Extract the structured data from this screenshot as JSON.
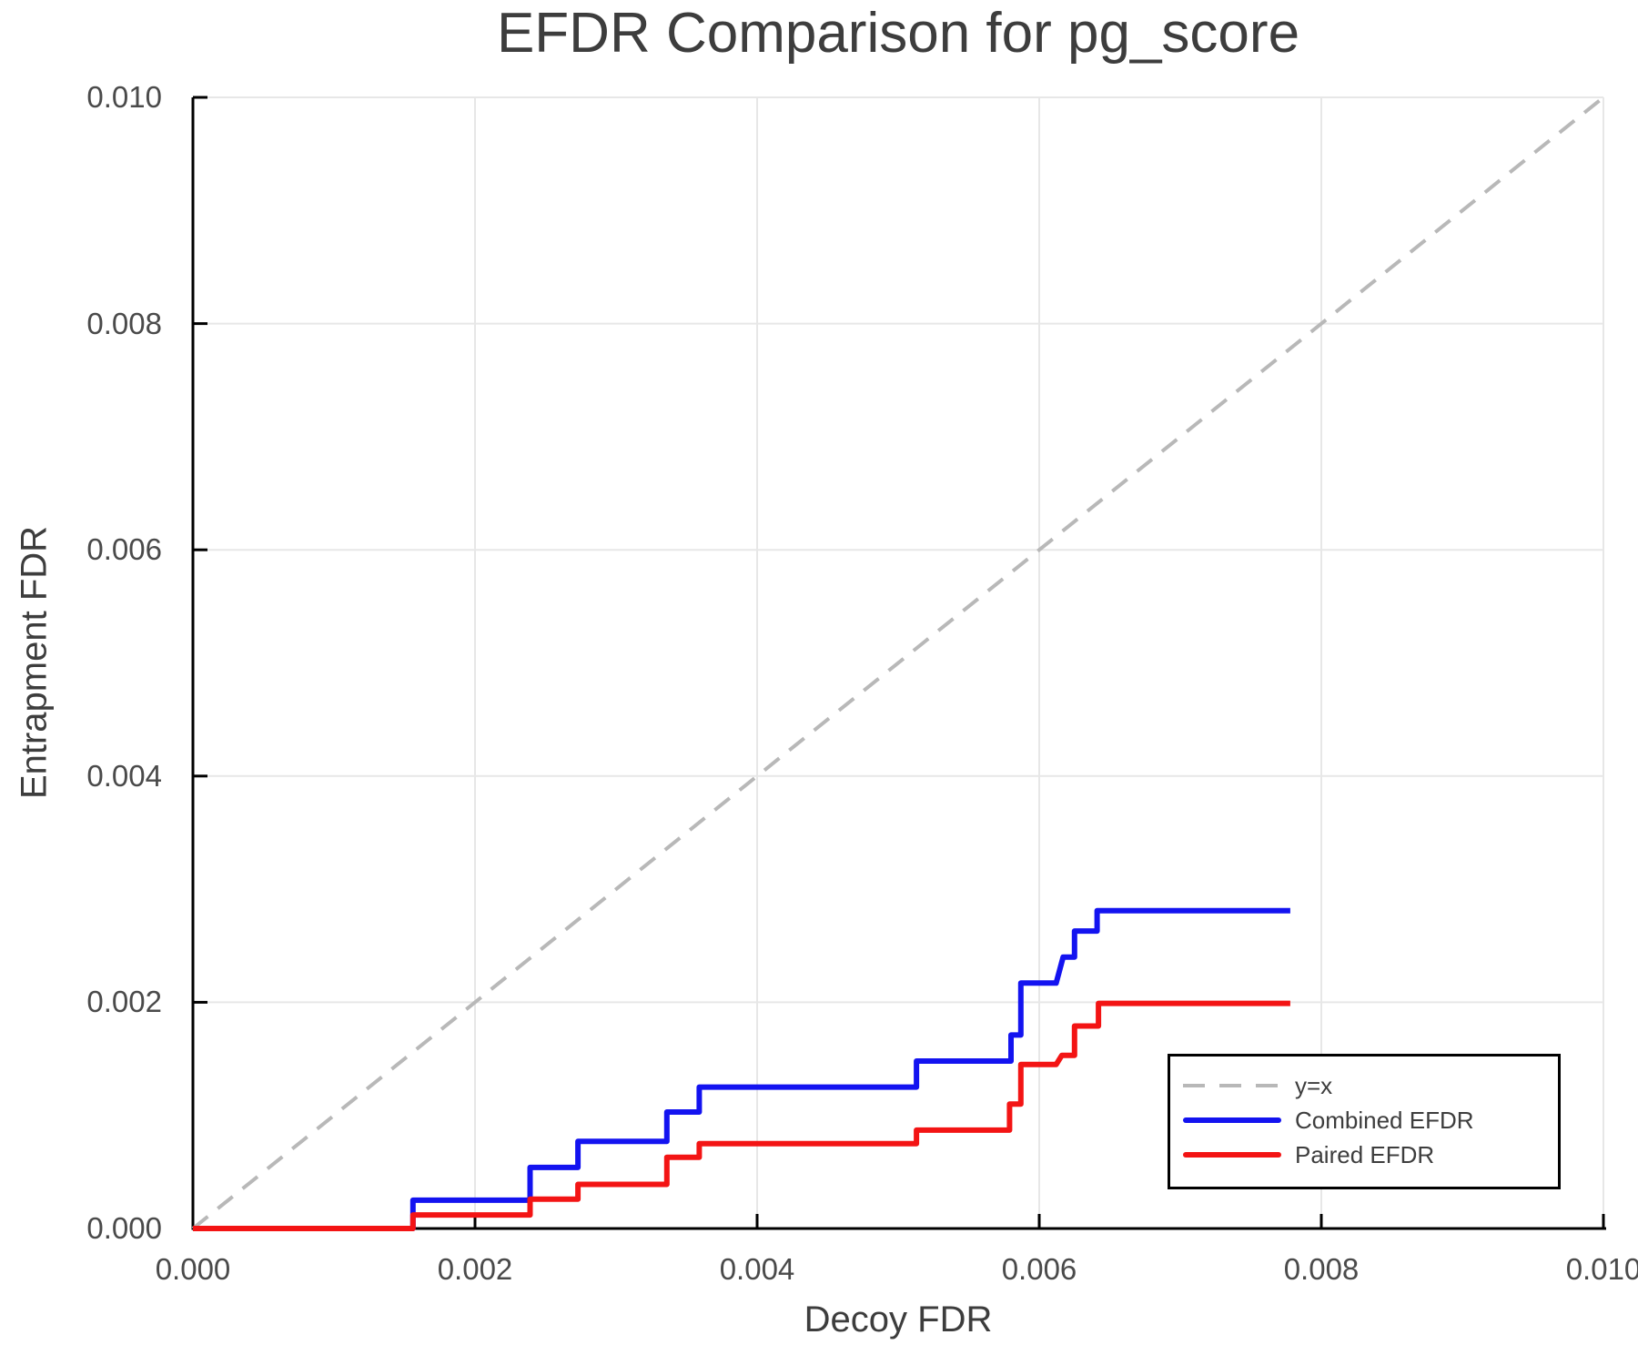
{
  "figure": {
    "background": "#ffffff"
  },
  "chart_data": {
    "type": "line",
    "title": "EFDR Comparison for pg_score",
    "xlabel": "Decoy FDR",
    "ylabel": "Entrapment FDR",
    "xlim": [
      0,
      0.01
    ],
    "ylim": [
      0,
      0.01
    ],
    "xticks": [
      0,
      0.002,
      0.004,
      0.006,
      0.008,
      0.01
    ],
    "xtick_labels": [
      "0.000",
      "0.002",
      "0.004",
      "0.006",
      "0.008",
      "0.010"
    ],
    "yticks": [
      0,
      0.002,
      0.004,
      0.006,
      0.008,
      0.01
    ],
    "ytick_labels": [
      "0.000",
      "0.002",
      "0.004",
      "0.006",
      "0.008",
      "0.010"
    ],
    "grid": true,
    "grid_color": "#e7e7e7",
    "axis_color": "#000000",
    "title_color": "#3d3d3d",
    "tick_label_color": "#4a4a4a",
    "legend_position": "bottom-right",
    "series": [
      {
        "name": "y=x",
        "color": "#b8b8b8",
        "dash": true,
        "width": 4,
        "points": [
          [
            0,
            0
          ],
          [
            0.01,
            0.01
          ]
        ]
      },
      {
        "name": "Combined EFDR",
        "color": "#1313f0",
        "dash": false,
        "width": 6,
        "points": [
          [
            0,
            0
          ],
          [
            0.00156,
            0
          ],
          [
            0.00156,
            0.00025
          ],
          [
            0.00239,
            0.00025
          ],
          [
            0.00239,
            0.00054
          ],
          [
            0.00273,
            0.00054
          ],
          [
            0.00273,
            0.00077
          ],
          [
            0.00336,
            0.00077
          ],
          [
            0.00336,
            0.00103
          ],
          [
            0.00359,
            0.00103
          ],
          [
            0.00359,
            0.00125
          ],
          [
            0.00513,
            0.00125
          ],
          [
            0.00513,
            0.00148
          ],
          [
            0.0058,
            0.00148
          ],
          [
            0.0058,
            0.00171
          ],
          [
            0.00587,
            0.00171
          ],
          [
            0.00587,
            0.00217
          ],
          [
            0.00612,
            0.00217
          ],
          [
            0.00617,
            0.0024
          ],
          [
            0.00625,
            0.0024
          ],
          [
            0.00625,
            0.00263
          ],
          [
            0.00641,
            0.00263
          ],
          [
            0.00641,
            0.00281
          ],
          [
            0.00778,
            0.00281
          ]
        ]
      },
      {
        "name": "Paired EFDR",
        "color": "#f31414",
        "dash": false,
        "width": 6,
        "points": [
          [
            0,
            0
          ],
          [
            0.00156,
            0
          ],
          [
            0.00156,
            0.00012
          ],
          [
            0.00239,
            0.00012
          ],
          [
            0.00239,
            0.00026
          ],
          [
            0.00273,
            0.00026
          ],
          [
            0.00273,
            0.00039
          ],
          [
            0.00336,
            0.00039
          ],
          [
            0.00336,
            0.00063
          ],
          [
            0.00359,
            0.00063
          ],
          [
            0.00359,
            0.00075
          ],
          [
            0.00513,
            0.00075
          ],
          [
            0.00513,
            0.00087
          ],
          [
            0.00579,
            0.00087
          ],
          [
            0.00579,
            0.0011
          ],
          [
            0.00587,
            0.0011
          ],
          [
            0.00587,
            0.00145
          ],
          [
            0.00612,
            0.00145
          ],
          [
            0.00616,
            0.00153
          ],
          [
            0.00625,
            0.00153
          ],
          [
            0.00625,
            0.00179
          ],
          [
            0.00642,
            0.00179
          ],
          [
            0.00642,
            0.00199
          ],
          [
            0.00778,
            0.00199
          ]
        ]
      }
    ]
  },
  "legend": {
    "items": [
      {
        "label": "y=x"
      },
      {
        "label": "Combined EFDR"
      },
      {
        "label": "Paired EFDR"
      }
    ]
  }
}
